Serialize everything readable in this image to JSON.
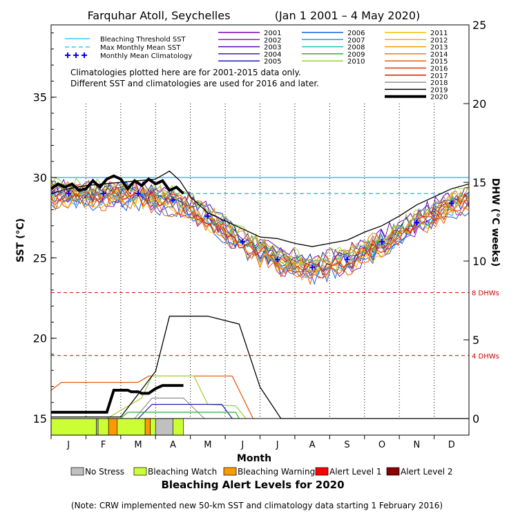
{
  "chart_data": {
    "type": "line",
    "title": "Farquhar Atoll, Seychelles",
    "date_range": "(Jan 1 2001 – 4 May 2020)",
    "ylabel_left": "SST (°C)",
    "ylabel_right": "DHW (°C weeks)",
    "xlabel": "Month",
    "months": [
      "J",
      "F",
      "M",
      "A",
      "M",
      "J",
      "J",
      "A",
      "S",
      "O",
      "N",
      "D"
    ],
    "y_left_ticks": [
      "15",
      "20",
      "25",
      "30",
      "35"
    ],
    "y_right_ticks": [
      "0",
      "5",
      "10",
      "15",
      "20",
      "25"
    ],
    "ylim_left": [
      15,
      39.5
    ],
    "ylim_right": [
      0,
      25
    ],
    "bleaching_threshold_sst": 30.0,
    "max_monthly_mean_sst": 29.0,
    "dhw_refs": [
      {
        "label": "8 DHWs",
        "value": 8
      },
      {
        "label": "4 DHWs",
        "value": 4
      }
    ],
    "legend_lines": [
      {
        "name": "Bleaching Threshold SST",
        "color": "#00bfff",
        "style": "solid"
      },
      {
        "name": "Max Monthly Mean SST",
        "color": "#00bfff",
        "style": "dashed"
      },
      {
        "name": "Monthly Mean Climatology",
        "color": "#0000ff",
        "style": "plus"
      }
    ],
    "notes": [
      "Climatologies plotted here are for 2001-2015 data only.",
      "Different SST and climatologies are used for 2016 and later."
    ],
    "years": [
      {
        "year": "2001",
        "color": "#7b00b5"
      },
      {
        "year": "2002",
        "color": "#8a1ab8"
      },
      {
        "year": "2003",
        "color": "#5a00b8"
      },
      {
        "year": "2004",
        "color": "#3a1ab8"
      },
      {
        "year": "2005",
        "color": "#1a1ab8"
      },
      {
        "year": "2006",
        "color": "#1a5fe0"
      },
      {
        "year": "2007",
        "color": "#1aa0e0"
      },
      {
        "year": "2008",
        "color": "#1ac0c0"
      },
      {
        "year": "2009",
        "color": "#2ab02a"
      },
      {
        "year": "2010",
        "color": "#9ad02a"
      },
      {
        "year": "2011",
        "color": "#f0c000"
      },
      {
        "year": "2012",
        "color": "#f5b000"
      },
      {
        "year": "2013",
        "color": "#f59a00"
      },
      {
        "year": "2014",
        "color": "#f07800"
      },
      {
        "year": "2015",
        "color": "#f05a00"
      },
      {
        "year": "2016",
        "color": "#e03000"
      },
      {
        "year": "2017",
        "color": "#e01000"
      },
      {
        "year": "2018",
        "color": "#909090"
      },
      {
        "year": "2019",
        "color": "#000000"
      },
      {
        "year": "2020",
        "color": "#000000"
      }
    ],
    "climatology": [
      {
        "m": 0.5,
        "v": 29.0
      },
      {
        "m": 1.5,
        "v": 29.0
      },
      {
        "m": 2.5,
        "v": 29.0
      },
      {
        "m": 3.5,
        "v": 28.6
      },
      {
        "m": 4.5,
        "v": 27.6
      },
      {
        "m": 5.5,
        "v": 26.0
      },
      {
        "m": 6.5,
        "v": 24.9
      },
      {
        "m": 7.5,
        "v": 24.4
      },
      {
        "m": 8.5,
        "v": 24.9
      },
      {
        "m": 9.5,
        "v": 26.0
      },
      {
        "m": 10.5,
        "v": 27.2
      },
      {
        "m": 11.5,
        "v": 28.4
      }
    ],
    "sst_2020": [
      [
        0.0,
        29.3
      ],
      [
        0.2,
        29.6
      ],
      [
        0.4,
        29.4
      ],
      [
        0.6,
        29.6
      ],
      [
        0.8,
        29.2
      ],
      [
        1.0,
        29.3
      ],
      [
        1.2,
        29.8
      ],
      [
        1.4,
        29.4
      ],
      [
        1.6,
        29.9
      ],
      [
        1.8,
        30.1
      ],
      [
        2.0,
        29.9
      ],
      [
        2.2,
        29.3
      ],
      [
        2.4,
        29.8
      ],
      [
        2.6,
        29.5
      ],
      [
        2.8,
        29.9
      ],
      [
        3.0,
        29.6
      ],
      [
        3.2,
        29.8
      ],
      [
        3.4,
        29.2
      ],
      [
        3.6,
        29.4
      ],
      [
        3.8,
        29.0
      ]
    ],
    "sst_2019": [
      [
        0.0,
        29.0
      ],
      [
        0.5,
        29.3
      ],
      [
        1.0,
        29.5
      ],
      [
        1.5,
        29.6
      ],
      [
        2.0,
        29.7
      ],
      [
        2.5,
        29.8
      ],
      [
        3.0,
        29.9
      ],
      [
        3.4,
        30.4
      ],
      [
        3.7,
        29.8
      ],
      [
        4.0,
        28.8
      ],
      [
        4.5,
        27.8
      ],
      [
        5.0,
        27.3
      ],
      [
        5.5,
        26.8
      ],
      [
        6.0,
        26.3
      ],
      [
        6.5,
        26.2
      ],
      [
        7.0,
        25.9
      ],
      [
        7.5,
        25.7
      ],
      [
        8.0,
        25.9
      ],
      [
        8.5,
        26.1
      ],
      [
        9.0,
        26.6
      ],
      [
        9.5,
        27.0
      ],
      [
        10.0,
        27.6
      ],
      [
        10.5,
        28.3
      ],
      [
        11.0,
        28.8
      ],
      [
        11.5,
        29.3
      ],
      [
        12.0,
        29.6
      ]
    ],
    "dhw_2019": [
      [
        0.0,
        0.1
      ],
      [
        2.0,
        0.1
      ],
      [
        3.0,
        3.0
      ],
      [
        3.4,
        6.5
      ],
      [
        4.5,
        6.5
      ],
      [
        5.4,
        6.0
      ],
      [
        6.0,
        2.0
      ],
      [
        6.6,
        0.0
      ],
      [
        12.0,
        0.0
      ]
    ],
    "dhw_2020": [
      [
        0.0,
        0.4
      ],
      [
        0.8,
        0.4
      ],
      [
        1.1,
        0.4
      ],
      [
        1.6,
        0.4
      ],
      [
        1.8,
        1.8
      ],
      [
        2.2,
        1.8
      ],
      [
        2.3,
        1.7
      ],
      [
        2.5,
        1.7
      ],
      [
        2.6,
        1.6
      ],
      [
        2.8,
        1.6
      ],
      [
        3.0,
        1.9
      ],
      [
        3.2,
        2.1
      ],
      [
        3.6,
        2.1
      ],
      [
        3.8,
        2.1
      ]
    ],
    "dhw_others": [
      {
        "color": "#e05000",
        "pts": [
          [
            0,
            1.8
          ],
          [
            0.3,
            2.3
          ],
          [
            0.5,
            2.3
          ],
          [
            2.5,
            2.3
          ],
          [
            2.8,
            2.7
          ],
          [
            3.0,
            2.7
          ],
          [
            5.2,
            2.7
          ],
          [
            5.8,
            0.0
          ]
        ]
      },
      {
        "color": "#9ad02a",
        "pts": [
          [
            1.6,
            0.0
          ],
          [
            2.6,
            1.3
          ],
          [
            2.9,
            2.7
          ],
          [
            4.1,
            2.7
          ],
          [
            4.5,
            0.9
          ],
          [
            5.3,
            0.8
          ],
          [
            5.6,
            0.0
          ]
        ]
      },
      {
        "color": "#909090",
        "pts": [
          [
            2.4,
            0.0
          ],
          [
            2.9,
            1.3
          ],
          [
            3.8,
            1.3
          ],
          [
            4.4,
            0.0
          ]
        ]
      },
      {
        "color": "#1a1ab8",
        "pts": [
          [
            2.5,
            0.0
          ],
          [
            2.9,
            0.9
          ],
          [
            4.9,
            0.9
          ],
          [
            5.2,
            0.0
          ]
        ]
      },
      {
        "color": "#2ab02a",
        "pts": [
          [
            2.0,
            0.0
          ],
          [
            2.2,
            0.4
          ],
          [
            5.3,
            0.4
          ],
          [
            5.4,
            0.0
          ]
        ]
      }
    ],
    "bleaching_2020": [
      {
        "m0": 0.0,
        "m1": 1.3,
        "level": "watch"
      },
      {
        "m0": 1.3,
        "m1": 1.35,
        "level": "nostress"
      },
      {
        "m0": 1.35,
        "m1": 1.65,
        "level": "watch"
      },
      {
        "m0": 1.65,
        "m1": 1.9,
        "level": "warning"
      },
      {
        "m0": 1.9,
        "m1": 2.7,
        "level": "watch"
      },
      {
        "m0": 2.7,
        "m1": 2.85,
        "level": "warning"
      },
      {
        "m0": 2.85,
        "m1": 3.0,
        "level": "watch"
      },
      {
        "m0": 3.0,
        "m1": 3.5,
        "level": "nostress"
      },
      {
        "m0": 3.5,
        "m1": 3.8,
        "level": "watch"
      }
    ],
    "alert_legend": [
      {
        "label": "No Stress",
        "color": "#c0c0c0"
      },
      {
        "label": "Bleaching Watch",
        "color": "#ccff33"
      },
      {
        "label": "Bleaching Warning",
        "color": "#ff9900"
      },
      {
        "label": "Alert Level 1",
        "color": "#ff0000"
      },
      {
        "label": "Alert Level 2",
        "color": "#8b0000"
      }
    ],
    "alert_title": "Bleaching Alert Levels for 2020",
    "footnote": "(Note: CRW implemented new 50-km SST and climatology data starting 1 February 2016)"
  }
}
